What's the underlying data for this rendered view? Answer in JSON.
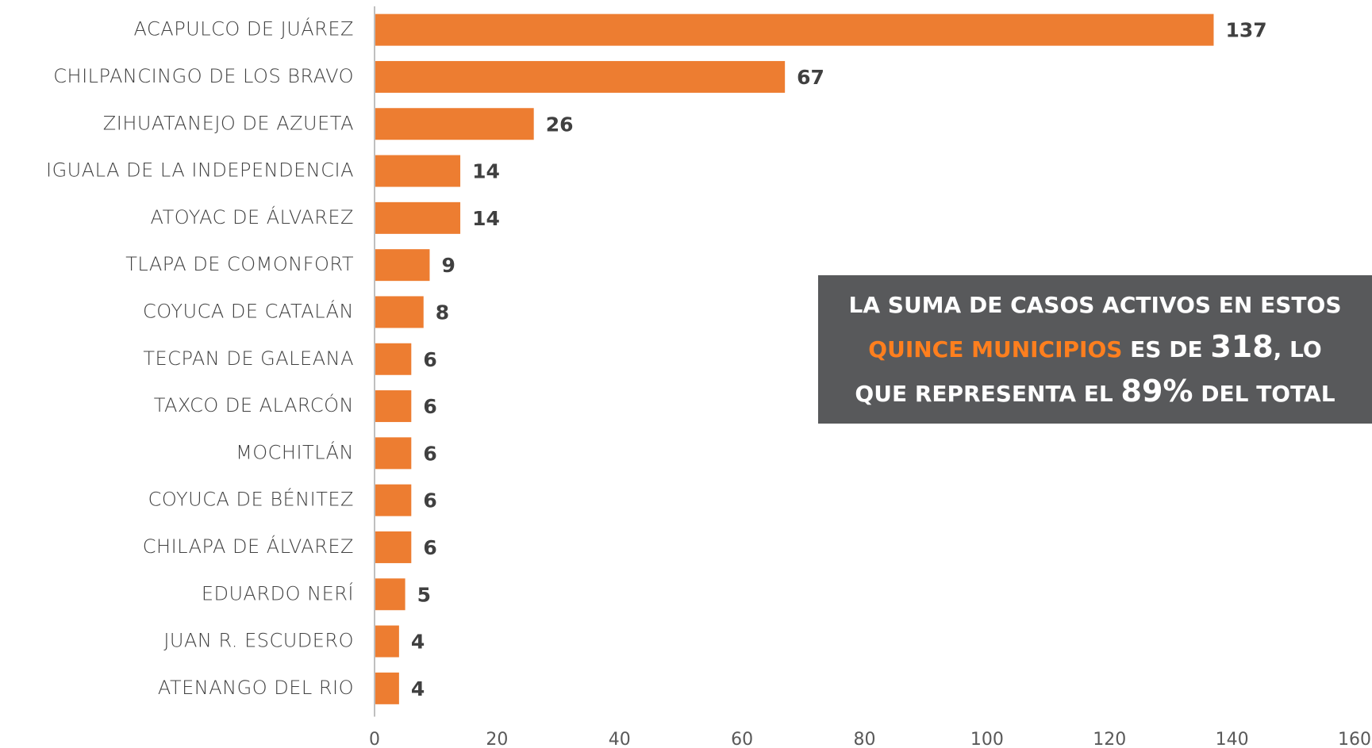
{
  "chart_data": {
    "type": "bar",
    "orientation": "horizontal",
    "categories": [
      "ACAPULCO DE JUÁREZ",
      "CHILPANCINGO DE LOS BRAVO",
      "ZIHUATANEJO DE AZUETA",
      "IGUALA DE LA INDEPENDENCIA",
      "ATOYAC DE ÁLVAREZ",
      "TLAPA DE COMONFORT",
      "COYUCA DE CATALÁN",
      "TECPAN DE GALEANA",
      "TAXCO DE ALARCÓN",
      "MOCHITLÁN",
      "COYUCA DE BÉNITEZ",
      "CHILAPA DE ÁLVAREZ",
      "EDUARDO NERÍ",
      "JUAN R. ESCUDERO",
      "ATENANGO DEL RIO"
    ],
    "values": [
      137,
      67,
      26,
      14,
      14,
      9,
      8,
      6,
      6,
      6,
      6,
      6,
      5,
      4,
      4
    ],
    "color": "#ed7d31",
    "xlim": [
      0,
      160
    ],
    "xticks": [
      0,
      20,
      40,
      60,
      80,
      100,
      120,
      140,
      160
    ],
    "annotation": {
      "text1": "LA SUMA DE CASOS ACTIVOS EN ESTOS",
      "highlight": "QUINCE MUNICIPIOS",
      "text2": "ES DE",
      "total": "318",
      "text3": ", LO",
      "text4": "QUE REPRESENTA EL",
      "percent": "89%",
      "text5": "DEL TOTAL",
      "highlight_color": "#ff7f1e",
      "background": "#58595b"
    }
  }
}
